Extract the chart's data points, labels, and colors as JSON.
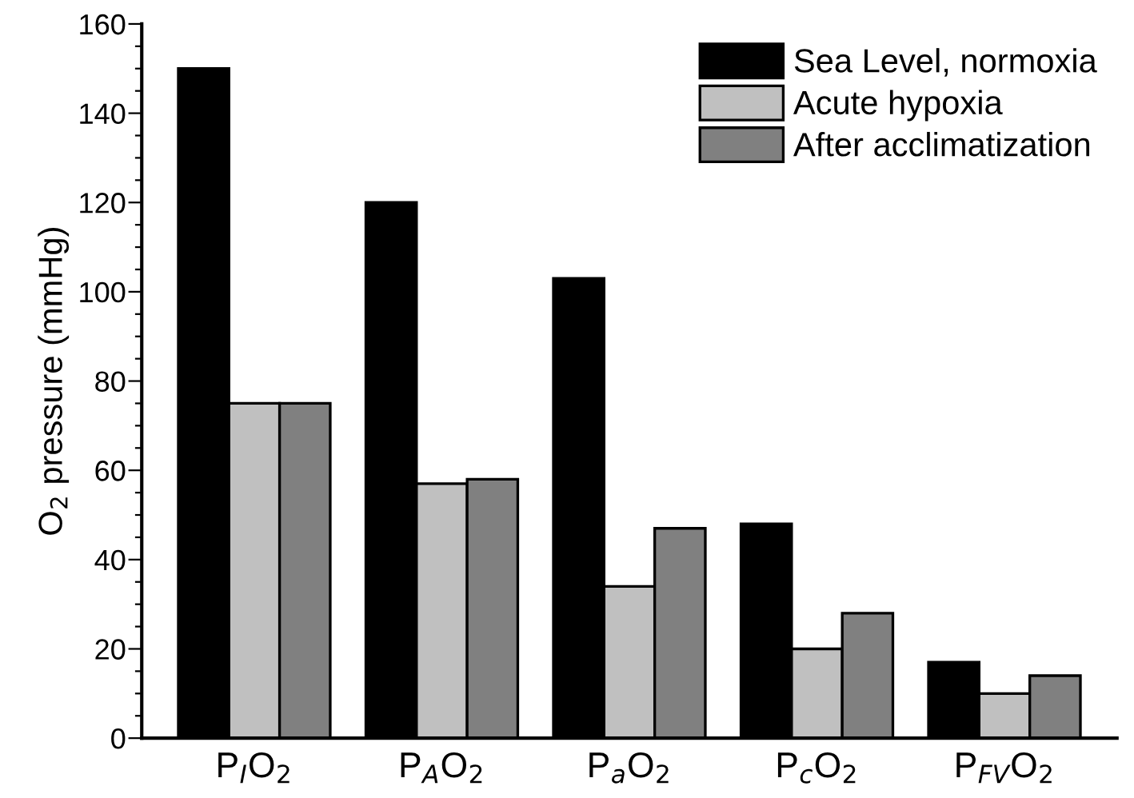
{
  "chart_data": {
    "type": "bar",
    "ylabel": "O$_{2}$ pressure (mmHg)",
    "categories": [
      "P$_{I}$O$_{2}$",
      "P$_{A}$O$_{2}$",
      "P$_{a}$O$_{2}$",
      "P$_{c}$O$_{2}$",
      "P$_{FV}$O$_{2}$"
    ],
    "series": [
      {
        "name": "Sea Level, normoxia",
        "color": "#000000",
        "values": [
          150,
          120,
          103,
          48,
          17
        ]
      },
      {
        "name": "Acute hypoxia",
        "color": "#c0c0c0",
        "values": [
          75,
          57,
          34,
          20,
          10
        ]
      },
      {
        "name": "After acclimatization",
        "color": "#808080",
        "values": [
          75,
          58,
          47,
          28,
          14
        ]
      }
    ],
    "ylim": [
      0,
      160
    ],
    "yticks": [
      0,
      {
        "value": 5,
        "label": null
      },
      {
        "value": 10,
        "label": null
      },
      {
        "value": 15,
        "label": null
      },
      20,
      {
        "value": 25,
        "label": null
      },
      {
        "value": 30,
        "label": null
      },
      {
        "value": 35,
        "label": null
      },
      40,
      {
        "value": 45,
        "label": null
      },
      {
        "value": 50,
        "label": null
      },
      {
        "value": 55,
        "label": null
      },
      60,
      {
        "value": 65,
        "label": null
      },
      {
        "value": 70,
        "label": null
      },
      {
        "value": 75,
        "label": null
      },
      80,
      {
        "value": 85,
        "label": null
      },
      {
        "value": 90,
        "label": null
      },
      {
        "value": 95,
        "label": null
      },
      100,
      {
        "value": 105,
        "label": null
      },
      {
        "value": 110,
        "label": null
      },
      {
        "value": 115,
        "label": null
      },
      120,
      {
        "value": 125,
        "label": null
      },
      {
        "value": 130,
        "label": null
      },
      {
        "value": 135,
        "label": null
      },
      140,
      {
        "value": 145,
        "label": null
      },
      {
        "value": 150,
        "label": null
      },
      {
        "value": 155,
        "label": null
      },
      160
    ],
    "grid": false,
    "legend": "top right"
  }
}
